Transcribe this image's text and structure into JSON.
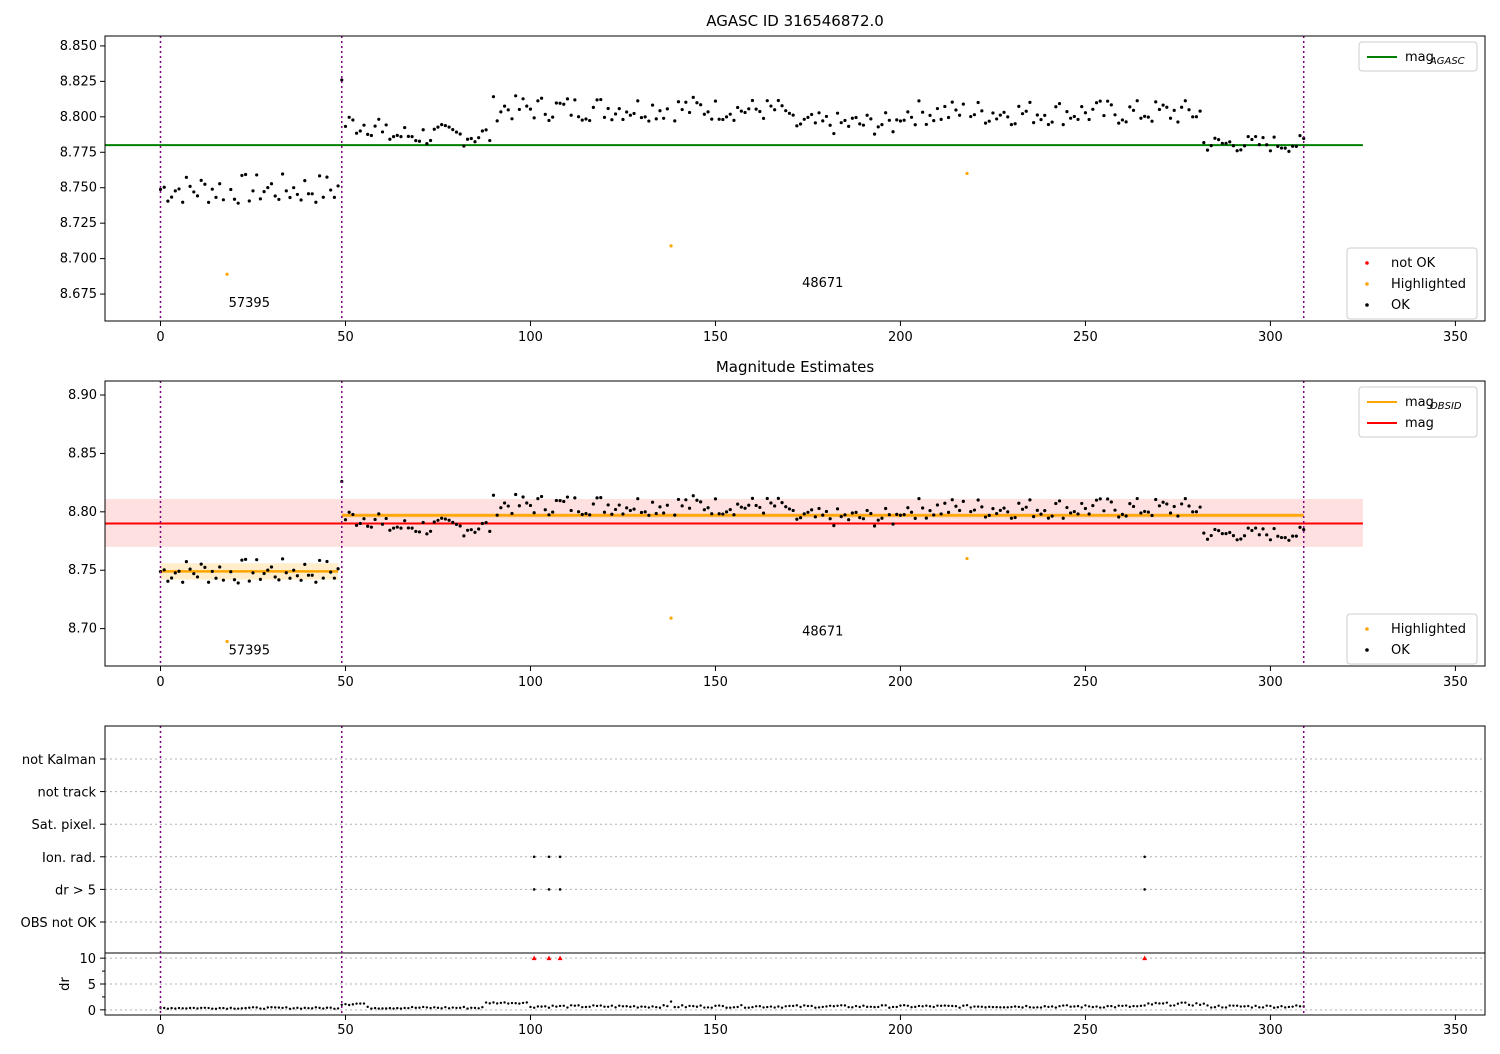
{
  "chart_data": [
    {
      "type": "scatter",
      "title": "AGASC ID 316546872.0",
      "xlim": [
        -15,
        358
      ],
      "ylim": [
        8.656,
        8.857
      ],
      "yticks": [
        8.675,
        8.7,
        8.725,
        8.75,
        8.775,
        8.8,
        8.825,
        8.85
      ],
      "ytick_labels": [
        "8.675",
        "8.700",
        "8.725",
        "8.750",
        "8.775",
        "8.800",
        "8.825",
        "8.850"
      ],
      "xticks": [
        0,
        50,
        100,
        150,
        200,
        250,
        300,
        350
      ],
      "xtick_labels": [
        "0",
        "50",
        "100",
        "150",
        "200",
        "250",
        "300",
        "350"
      ],
      "hlines": [
        {
          "name": "mag_AGASC",
          "y": 8.78,
          "x0": -15,
          "x1": 325,
          "color": "#008000"
        }
      ],
      "vlines": [
        0,
        49,
        309
      ],
      "obsid_labels": [
        {
          "text": "57395",
          "x": 24,
          "y": 8.666
        },
        {
          "text": "48671",
          "x": 179,
          "y": 8.68
        }
      ],
      "highlighted": [
        {
          "x": 18,
          "y": 8.689
        },
        {
          "x": 138,
          "y": 8.709
        },
        {
          "x": 218,
          "y": 8.76
        }
      ],
      "legend": {
        "position": "top-right",
        "entries": [
          {
            "label": "mag",
            "sub": "AGASC",
            "color": "#008000"
          }
        ]
      },
      "legend2": {
        "position": "lower-right",
        "entries": [
          {
            "label": "not OK",
            "color": "#ff0000"
          },
          {
            "label": "Highlighted",
            "color": "#ffa500"
          },
          {
            "label": "OK",
            "color": "#000000"
          }
        ]
      }
    },
    {
      "type": "scatter",
      "title": "Magnitude Estimates",
      "xlim": [
        -15,
        358
      ],
      "ylim": [
        8.668,
        8.912
      ],
      "yticks": [
        8.7,
        8.75,
        8.8,
        8.85,
        8.9
      ],
      "ytick_labels": [
        "8.70",
        "8.75",
        "8.80",
        "8.85",
        "8.90"
      ],
      "xticks": [
        0,
        50,
        100,
        150,
        200,
        250,
        300,
        350
      ],
      "xtick_labels": [
        "0",
        "50",
        "100",
        "150",
        "200",
        "250",
        "300",
        "350"
      ],
      "mag": {
        "y": 8.79,
        "band": [
          8.77,
          8.811
        ],
        "x0": -15,
        "x1": 325,
        "color": "#ff0000"
      },
      "mag_obsid": [
        {
          "x0": 0,
          "x1": 48,
          "y": 8.749,
          "band": [
            8.742,
            8.756
          ]
        },
        {
          "x0": 49,
          "x1": 309,
          "y": 8.797,
          "band": [
            8.795,
            8.799
          ]
        }
      ],
      "vlines": [
        0,
        49,
        309
      ],
      "obsid_labels": [
        {
          "text": "57395",
          "x": 24,
          "y": 8.678
        },
        {
          "text": "48671",
          "x": 179,
          "y": 8.694
        }
      ],
      "highlighted": [
        {
          "x": 18,
          "y": 8.689
        },
        {
          "x": 138,
          "y": 8.709
        },
        {
          "x": 218,
          "y": 8.76
        }
      ],
      "legend": {
        "position": "top-right",
        "entries": [
          {
            "label": "mag",
            "sub": "OBSID",
            "color": "#ffa500"
          },
          {
            "label": "mag",
            "sub": "",
            "color": "#ff0000"
          }
        ]
      },
      "legend2": {
        "position": "lower-right",
        "entries": [
          {
            "label": "Highlighted",
            "color": "#ffa500"
          },
          {
            "label": "OK",
            "color": "#000000"
          }
        ]
      }
    },
    {
      "type": "scatter",
      "xlim": [
        -15,
        358
      ],
      "flag_labels": [
        "not Kalman",
        "not track",
        "Sat. pixel.",
        "Ion. rad.",
        "dr > 5",
        "OBS not OK"
      ],
      "flag_points": [
        {
          "flag": "Ion. rad.",
          "x": [
            101,
            105,
            108,
            266
          ]
        },
        {
          "flag": "dr > 5",
          "x": [
            101,
            105,
            108,
            266
          ]
        }
      ],
      "dr_ylabel": "dr",
      "dr_ylim": [
        -1,
        11
      ],
      "dr_yticks": [
        0,
        5,
        10
      ],
      "dr_ytick_labels": [
        "0",
        "5",
        "10"
      ],
      "dr_clipped": {
        "x": [
          101,
          105,
          108,
          266
        ],
        "y": 10,
        "color": "#ff0000"
      },
      "xticks": [
        0,
        50,
        100,
        150,
        200,
        250,
        300,
        350
      ],
      "xtick_labels": [
        "0",
        "50",
        "100",
        "150",
        "200",
        "250",
        "300",
        "350"
      ],
      "vlines": [
        0,
        49,
        309
      ]
    }
  ]
}
